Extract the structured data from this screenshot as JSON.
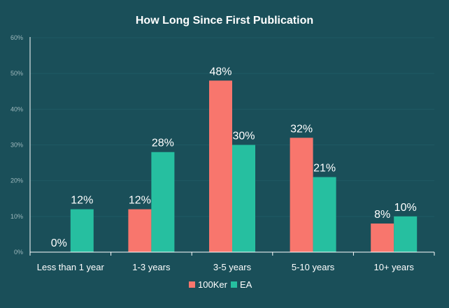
{
  "chart_data": {
    "type": "bar",
    "title": "How Long Since First Publication",
    "xlabel": "",
    "ylabel": "",
    "categories": [
      "Less than 1 year",
      "1-3 years",
      "3-5 years",
      "5-10 years",
      "10+ years"
    ],
    "series": [
      {
        "name": "100Ker",
        "color": "#f8766d",
        "values": [
          0,
          12,
          48,
          32,
          8
        ],
        "labels": [
          "0%",
          "12%",
          "48%",
          "32%",
          "8%"
        ]
      },
      {
        "name": "EA",
        "color": "#26bfa0",
        "values": [
          12,
          28,
          30,
          21,
          10
        ],
        "labels": [
          "12%",
          "28%",
          "30%",
          "21%",
          "10%"
        ]
      }
    ],
    "ylim": [
      0,
      60
    ],
    "yticks": [
      0,
      10,
      20,
      30,
      40,
      50,
      60
    ],
    "ytick_labels": [
      "0%",
      "10%",
      "20%",
      "30%",
      "40%",
      "50%",
      "60%"
    ],
    "grid": true,
    "legend_position": "bottom-center"
  }
}
